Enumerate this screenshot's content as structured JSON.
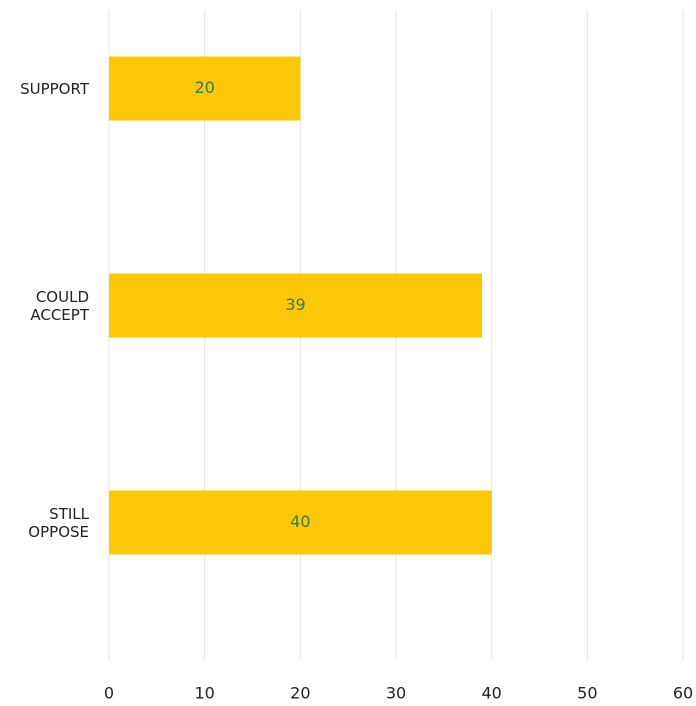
{
  "chart_data": {
    "type": "hbar",
    "categories": [
      "SUPPORT",
      "COULD ACCEPT",
      "STILL OPPOSE"
    ],
    "values": [
      20,
      39,
      40
    ],
    "color": "#fcc707",
    "label_color": "#2e7d5b",
    "xlim": [
      0,
      60
    ],
    "xticks": [
      0,
      10,
      20,
      30,
      40,
      50,
      60
    ],
    "grid": true
  }
}
